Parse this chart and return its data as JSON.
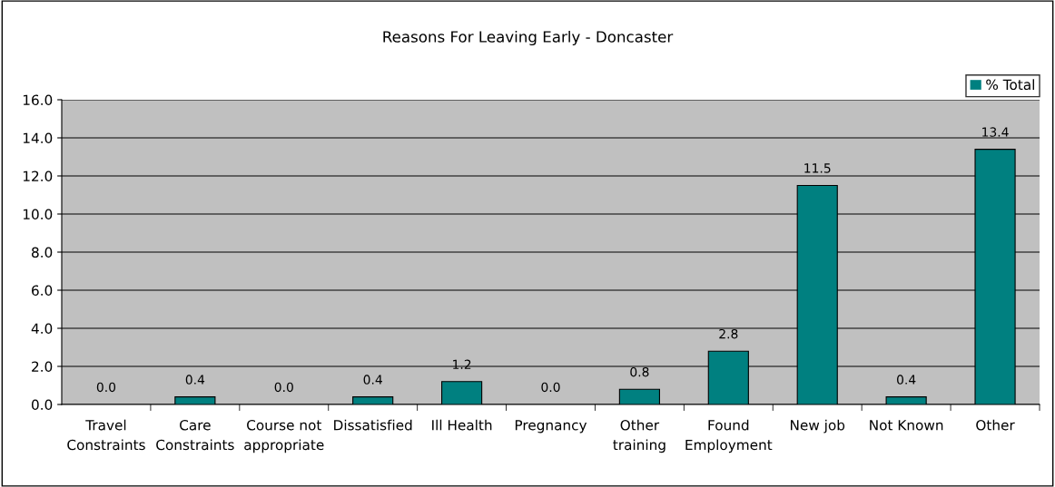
{
  "chart_data": {
    "type": "bar",
    "title": "Reasons For Leaving Early - Doncaster",
    "categories": [
      "Travel\nConstraints",
      "Care\nConstraints",
      "Course not\nappropriate",
      "Dissatisfied",
      "Ill Health",
      "Pregnancy",
      "Other\ntraining",
      "Found\nEmployment",
      "New job",
      "Not Known",
      "Other"
    ],
    "series": [
      {
        "name": "% Total",
        "color": "#008080",
        "values": [
          0.0,
          0.4,
          0.0,
          0.4,
          1.2,
          0.0,
          0.8,
          2.8,
          11.5,
          0.4,
          13.4
        ],
        "value_labels": [
          "0.0",
          "0.4",
          "0.0",
          "0.4",
          "1.2",
          "0.0",
          "0.8",
          "2.8",
          "11.5",
          "0.4",
          "13.4"
        ]
      }
    ],
    "ylim": [
      0,
      16
    ],
    "yticks": [
      {
        "value": 0,
        "label": "0.0"
      },
      {
        "value": 2,
        "label": "2.0"
      },
      {
        "value": 4,
        "label": "4.0"
      },
      {
        "value": 6,
        "label": "6.0"
      },
      {
        "value": 8,
        "label": "8.0"
      },
      {
        "value": 10,
        "label": "10.0"
      },
      {
        "value": 12,
        "label": "12.0"
      },
      {
        "value": 14,
        "label": "14.0"
      },
      {
        "value": 16,
        "label": "16.0"
      }
    ],
    "grid": "y",
    "legend": "top right"
  }
}
